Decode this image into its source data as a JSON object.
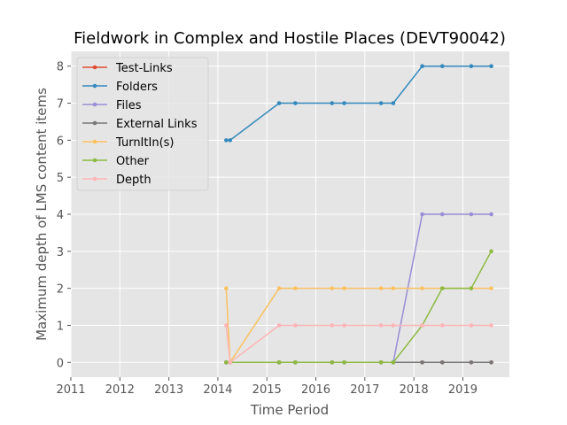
{
  "chart_data": {
    "type": "line",
    "title": "Fieldwork in Complex and Hostile Places (DEVT90042)",
    "xlabel": "Time Period",
    "ylabel": "Maximum depth of LMS content items",
    "xlim": [
      2011.0,
      2019.95
    ],
    "ylim": [
      -0.4,
      8.4
    ],
    "x_ticks": [
      "2011",
      "2012",
      "2013",
      "2014",
      "2015",
      "2016",
      "2017",
      "2018",
      "2019"
    ],
    "y_ticks": [
      "0",
      "1",
      "2",
      "3",
      "4",
      "5",
      "6",
      "7",
      "8"
    ],
    "grid": true,
    "legend_position": "upper-left",
    "x": [
      2014.17,
      2014.25,
      2015.25,
      2015.58,
      2016.33,
      2016.58,
      2017.33,
      2017.58,
      2018.17,
      2018.58,
      2019.17,
      2019.58
    ],
    "series": [
      {
        "name": "Test-Links",
        "color": "#E24A33",
        "values": [
          0,
          0,
          0,
          0,
          0,
          0,
          0,
          0,
          0,
          0,
          0,
          0
        ]
      },
      {
        "name": "Folders",
        "color": "#348ABD",
        "values": [
          6,
          6,
          7,
          7,
          7,
          7,
          7,
          7,
          8,
          8,
          8,
          8
        ]
      },
      {
        "name": "Files",
        "color": "#988ED5",
        "values": [
          0,
          0,
          0,
          0,
          0,
          0,
          0,
          0,
          4,
          4,
          4,
          4
        ]
      },
      {
        "name": "External Links",
        "color": "#777777",
        "values": [
          0,
          0,
          0,
          0,
          0,
          0,
          0,
          0,
          0,
          0,
          0,
          0
        ]
      },
      {
        "name": "TurnItIn(s)",
        "color": "#FBC15E",
        "values": [
          2,
          0,
          2,
          2,
          2,
          2,
          2,
          2,
          2,
          2,
          2,
          2
        ]
      },
      {
        "name": "Other",
        "color": "#8EBA42",
        "values": [
          0,
          0,
          0,
          0,
          0,
          0,
          0,
          0,
          1,
          2,
          2,
          3
        ]
      },
      {
        "name": "Depth",
        "color": "#FFB5B8",
        "values": [
          1,
          0,
          1,
          1,
          1,
          1,
          1,
          1,
          1,
          1,
          1,
          1
        ]
      }
    ]
  }
}
